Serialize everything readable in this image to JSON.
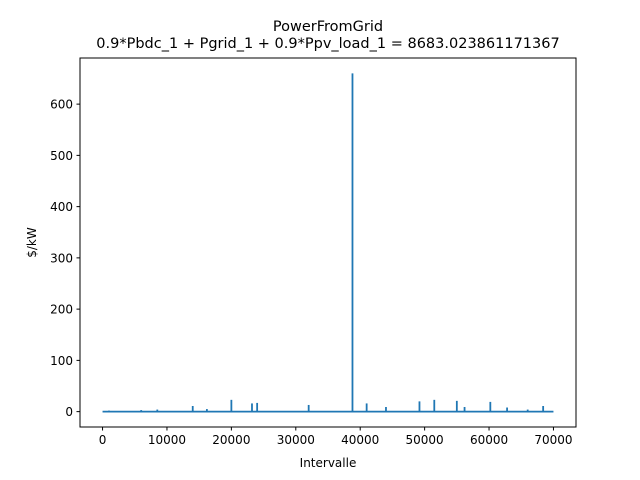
{
  "chart_data": {
    "type": "line",
    "title": "PowerFromGrid",
    "subtitle": "0.9*Pbdc_1 + Pgrid_1 + 0.9*Ppv_load_1 = 8683.023861171367",
    "xlabel": "Intervalle",
    "ylabel": "$/kW",
    "xlim": [
      -3500,
      73500
    ],
    "ylim": [
      -30,
      690
    ],
    "xticks": [
      0,
      10000,
      20000,
      30000,
      40000,
      50000,
      60000,
      70000
    ],
    "yticks": [
      0,
      100,
      200,
      300,
      400,
      500,
      600
    ],
    "grid": false,
    "series": [
      {
        "color": "#1f77b4",
        "baseline": 0,
        "x_range": [
          0,
          70000
        ],
        "spikes": [
          {
            "x": 1000,
            "y": 2
          },
          {
            "x": 6000,
            "y": 3
          },
          {
            "x": 8500,
            "y": 4
          },
          {
            "x": 14000,
            "y": 11
          },
          {
            "x": 16200,
            "y": 5
          },
          {
            "x": 20000,
            "y": 23
          },
          {
            "x": 23200,
            "y": 16
          },
          {
            "x": 24000,
            "y": 17
          },
          {
            "x": 32000,
            "y": 13
          },
          {
            "x": 38800,
            "y": 660
          },
          {
            "x": 41000,
            "y": 16
          },
          {
            "x": 44000,
            "y": 9
          },
          {
            "x": 49200,
            "y": 20
          },
          {
            "x": 51500,
            "y": 23
          },
          {
            "x": 55000,
            "y": 21
          },
          {
            "x": 56200,
            "y": 9
          },
          {
            "x": 60200,
            "y": 19
          },
          {
            "x": 62800,
            "y": 8
          },
          {
            "x": 66000,
            "y": 4
          },
          {
            "x": 68400,
            "y": 11
          }
        ]
      }
    ]
  }
}
